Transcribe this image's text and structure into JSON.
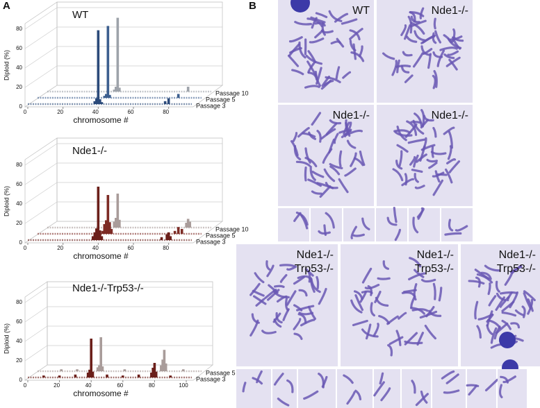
{
  "panel_a": {
    "label": "A",
    "charts": [
      {
        "title": "WT",
        "ylabel": "Diploid (%)",
        "xlabel": "chromosome #",
        "xlim": [
          0,
          90
        ],
        "xticks": [
          0,
          20,
          40,
          60,
          80
        ],
        "ylim": [
          0,
          80
        ],
        "yticks": [
          0,
          20,
          40,
          60,
          80
        ],
        "series": [
          {
            "name": "Passage 3",
            "color": "#2b4a7a",
            "x": [
              38,
              39,
              40,
              41,
              42,
              78,
              80
            ],
            "values": [
              3,
              6,
              76,
              5,
              2,
              3,
              6
            ]
          },
          {
            "name": "Passage 5",
            "color": "#3d5f8f",
            "x": [
              38,
              39,
              40,
              41,
              80
            ],
            "values": [
              2,
              4,
              74,
              3,
              4
            ]
          },
          {
            "name": "Passage 10",
            "color": "#9ea3aa",
            "x": [
              38,
              39,
              40,
              41,
              80
            ],
            "values": [
              2,
              5,
              76,
              4,
              5
            ]
          }
        ]
      },
      {
        "title": "Nde1-/-",
        "ylabel": "Diploid (%)",
        "xlabel": "chromosome #",
        "xlim": [
          0,
          90
        ],
        "xticks": [
          0,
          20,
          40,
          60,
          80
        ],
        "ylim": [
          0,
          80
        ],
        "yticks": [
          0,
          20,
          40,
          60,
          80
        ],
        "series": [
          {
            "name": "Passage 3",
            "color": "#6b1f1a",
            "x": [
              37,
              38,
              39,
              40,
              41,
              42,
              76,
              79,
              80,
              81
            ],
            "values": [
              4,
              8,
              12,
              55,
              10,
              4,
              3,
              6,
              8,
              4
            ]
          },
          {
            "name": "Passage 5",
            "color": "#7d2b25",
            "x": [
              37,
              38,
              39,
              40,
              41,
              42,
              78,
              80,
              82
            ],
            "values": [
              3,
              10,
              14,
              40,
              12,
              5,
              3,
              7,
              5
            ]
          },
          {
            "name": "Passage 10",
            "color": "#a99c9a",
            "x": [
              38,
              39,
              40,
              41,
              79,
              80,
              81
            ],
            "values": [
              6,
              10,
              35,
              8,
              5,
              9,
              6
            ]
          }
        ]
      },
      {
        "title": "Nde1-/-Trp53-/-",
        "ylabel": "Diploid (%)",
        "xlabel": "chromosome #",
        "xlim": [
          0,
          100
        ],
        "xticks": [
          0,
          20,
          40,
          60,
          80,
          100
        ],
        "ylim": [
          0,
          80
        ],
        "yticks": [
          0,
          20,
          40,
          60,
          80
        ],
        "series": [
          {
            "name": "Passage 3",
            "color": "#6b1f1a",
            "x": [
              10,
              20,
              30,
              38,
              39,
              40,
              41,
              50,
              60,
              70,
              78,
              79,
              80,
              81,
              90
            ],
            "values": [
              2,
              2,
              3,
              5,
              8,
              40,
              6,
              3,
              2,
              3,
              5,
              10,
              15,
              6,
              2
            ]
          },
          {
            "name": "Passage 5",
            "color": "#a99c9a",
            "x": [
              15,
              25,
              38,
              39,
              40,
              41,
              55,
              78,
              79,
              80,
              81,
              92
            ],
            "values": [
              2,
              2,
              4,
              6,
              35,
              5,
              2,
              6,
              12,
              22,
              8,
              2
            ]
          }
        ]
      }
    ]
  },
  "panel_b": {
    "label": "B",
    "images": [
      {
        "lines": [
          "WT"
        ]
      },
      {
        "lines": [
          "Nde1-/-"
        ]
      },
      {
        "lines": [
          "Nde1-/-"
        ]
      },
      {
        "lines": [
          "Nde1-/-"
        ]
      },
      {
        "lines": [
          "Nde1-/-",
          "Trp53-/-"
        ]
      },
      {
        "lines": [
          "Nde1-/-",
          "Trp53-/-"
        ]
      },
      {
        "lines": [
          "Nde1-/-",
          "Trp53-/-"
        ]
      }
    ]
  }
}
